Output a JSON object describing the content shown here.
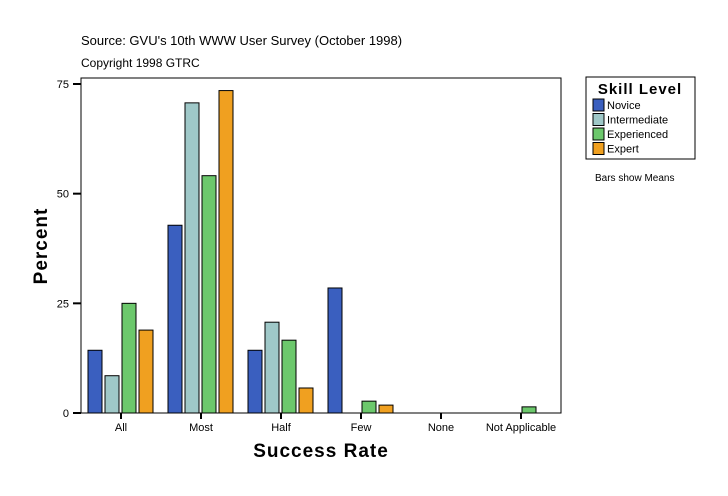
{
  "header": {
    "source": "Source: GVU's 10th WWW User Survey (October 1998)",
    "copyright": "Copyright 1998 GTRC"
  },
  "note": "Bars show Means",
  "chart_data": {
    "type": "bar",
    "xlabel": "Success Rate",
    "ylabel": "Percent",
    "ylim": [
      0,
      75
    ],
    "yticks": [
      0,
      25,
      50,
      75
    ],
    "grid": false,
    "legend_title": "Skill Level",
    "legend_placement": "right",
    "categories": [
      "All",
      "Most",
      "Half",
      "Few",
      "None",
      "Not Applicable"
    ],
    "series": [
      {
        "name": "Novice",
        "color": "#3a5fbf",
        "values": [
          14.3,
          42.8,
          14.3,
          28.5,
          0,
          0
        ]
      },
      {
        "name": "Intermediate",
        "color": "#9fc8c8",
        "values": [
          8.5,
          70.7,
          20.7,
          0,
          0,
          0
        ]
      },
      {
        "name": "Experienced",
        "color": "#6cc86c",
        "values": [
          25.0,
          54.1,
          16.6,
          2.7,
          0,
          1.4
        ]
      },
      {
        "name": "Expert",
        "color": "#f0a020",
        "values": [
          18.9,
          73.5,
          5.7,
          1.8,
          0,
          0
        ]
      }
    ]
  }
}
